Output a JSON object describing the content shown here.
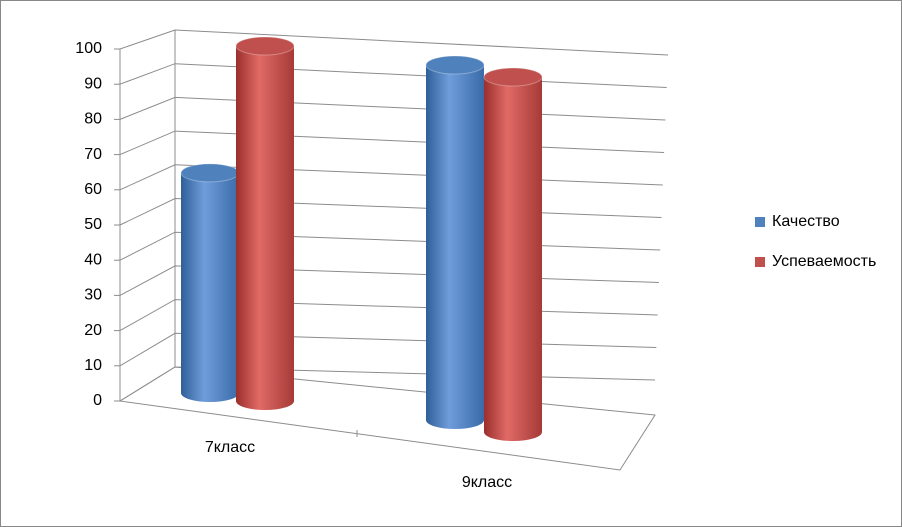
{
  "chart_data": {
    "type": "bar3d",
    "categories": [
      "7класс",
      "9класс"
    ],
    "series": [
      {
        "name": "Качество",
        "color": "#4f81bd",
        "values": [
          62,
          100
        ]
      },
      {
        "name": "Успеваемость",
        "color": "#c0504d",
        "values": [
          100,
          100
        ]
      }
    ],
    "ylim": [
      0,
      100
    ],
    "yticks": [
      0,
      10,
      20,
      30,
      40,
      50,
      60,
      70,
      80,
      90,
      100
    ],
    "grid": true,
    "legend": "right"
  }
}
